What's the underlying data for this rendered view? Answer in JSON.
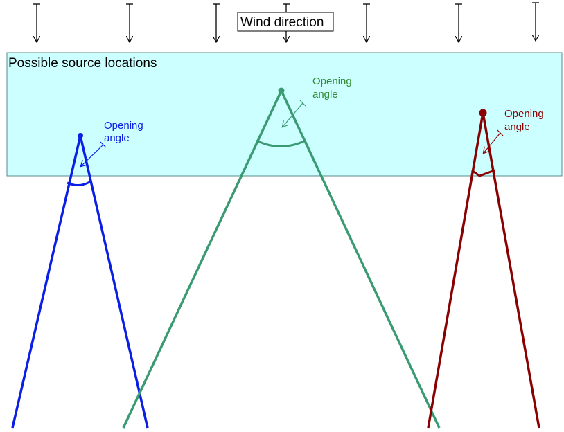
{
  "wind": {
    "label": "Wind direction",
    "arrow_count": 7
  },
  "region": {
    "label": "Possible source locations",
    "fill": "#ccffff",
    "stroke": "#5a8a8a"
  },
  "plumes": [
    {
      "name": "blue-plume",
      "color": "#0b1ee6",
      "label_line1": "Opening",
      "label_line2": "angle"
    },
    {
      "name": "green-plume",
      "color": "#3a9a72",
      "label_line1": "Opening",
      "label_line2": "angle"
    },
    {
      "name": "red-plume",
      "color": "#8b0000",
      "label_line1": "Opening",
      "label_line2": "angle"
    }
  ],
  "colors": {
    "label_green": "#2e8b2e",
    "arrow": "#000000"
  }
}
